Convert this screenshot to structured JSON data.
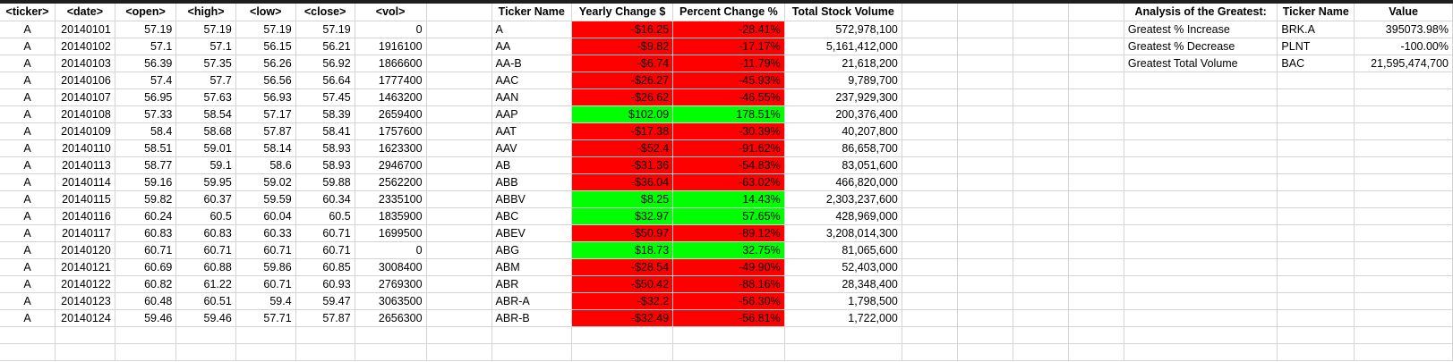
{
  "raw_headers": [
    "<ticker>",
    "<date>",
    "<open>",
    "<high>",
    "<low>",
    "<close>",
    "<vol>"
  ],
  "raw_rows": [
    [
      "A",
      "20140101",
      "57.19",
      "57.19",
      "57.19",
      "57.19",
      "0"
    ],
    [
      "A",
      "20140102",
      "57.1",
      "57.1",
      "56.15",
      "56.21",
      "1916100"
    ],
    [
      "A",
      "20140103",
      "56.39",
      "57.35",
      "56.26",
      "56.92",
      "1866600"
    ],
    [
      "A",
      "20140106",
      "57.4",
      "57.7",
      "56.56",
      "56.64",
      "1777400"
    ],
    [
      "A",
      "20140107",
      "56.95",
      "57.63",
      "56.93",
      "57.45",
      "1463200"
    ],
    [
      "A",
      "20140108",
      "57.33",
      "58.54",
      "57.17",
      "58.39",
      "2659400"
    ],
    [
      "A",
      "20140109",
      "58.4",
      "58.68",
      "57.87",
      "58.41",
      "1757600"
    ],
    [
      "A",
      "20140110",
      "58.51",
      "59.01",
      "58.14",
      "58.93",
      "1623300"
    ],
    [
      "A",
      "20140113",
      "58.77",
      "59.1",
      "58.6",
      "58.93",
      "2946700"
    ],
    [
      "A",
      "20140114",
      "59.16",
      "59.95",
      "59.02",
      "59.88",
      "2562200"
    ],
    [
      "A",
      "20140115",
      "59.82",
      "60.37",
      "59.59",
      "60.34",
      "2335100"
    ],
    [
      "A",
      "20140116",
      "60.24",
      "60.5",
      "60.04",
      "60.5",
      "1835900"
    ],
    [
      "A",
      "20140117",
      "60.83",
      "60.83",
      "60.33",
      "60.71",
      "1699500"
    ],
    [
      "A",
      "20140120",
      "60.71",
      "60.71",
      "60.71",
      "60.71",
      "0"
    ],
    [
      "A",
      "20140121",
      "60.69",
      "60.88",
      "59.86",
      "60.85",
      "3008400"
    ],
    [
      "A",
      "20140122",
      "60.82",
      "61.22",
      "60.71",
      "60.93",
      "2769300"
    ],
    [
      "A",
      "20140123",
      "60.48",
      "60.51",
      "59.4",
      "59.47",
      "3063500"
    ],
    [
      "A",
      "20140124",
      "59.46",
      "59.46",
      "57.71",
      "57.87",
      "2656300"
    ]
  ],
  "summary_headers": [
    "Ticker Name",
    "Yearly Change $",
    "Percent Change %",
    "Total Stock Volume"
  ],
  "summary_rows": [
    {
      "ticker": "A",
      "change": "-$16.25",
      "pct": "-28.41%",
      "volume": "572,978,100",
      "status": "neg"
    },
    {
      "ticker": "AA",
      "change": "-$9.82",
      "pct": "-17.17%",
      "volume": "5,161,412,000",
      "status": "neg"
    },
    {
      "ticker": "AA-B",
      "change": "-$6.74",
      "pct": "-11.79%",
      "volume": "21,618,200",
      "status": "neg"
    },
    {
      "ticker": "AAC",
      "change": "-$26.27",
      "pct": "-45.93%",
      "volume": "9,789,700",
      "status": "neg"
    },
    {
      "ticker": "AAN",
      "change": "-$26.62",
      "pct": "-46.55%",
      "volume": "237,929,300",
      "status": "neg"
    },
    {
      "ticker": "AAP",
      "change": "$102.09",
      "pct": "178.51%",
      "volume": "200,376,400",
      "status": "pos"
    },
    {
      "ticker": "AAT",
      "change": "-$17.38",
      "pct": "-30.39%",
      "volume": "40,207,800",
      "status": "neg"
    },
    {
      "ticker": "AAV",
      "change": "-$52.4",
      "pct": "-91.62%",
      "volume": "86,658,700",
      "status": "neg"
    },
    {
      "ticker": "AB",
      "change": "-$31.36",
      "pct": "-54.83%",
      "volume": "83,051,600",
      "status": "neg"
    },
    {
      "ticker": "ABB",
      "change": "-$36.04",
      "pct": "-63.02%",
      "volume": "466,820,000",
      "status": "neg"
    },
    {
      "ticker": "ABBV",
      "change": "$8.25",
      "pct": "14.43%",
      "volume": "2,303,237,600",
      "status": "pos"
    },
    {
      "ticker": "ABC",
      "change": "$32.97",
      "pct": "57.65%",
      "volume": "428,969,000",
      "status": "pos"
    },
    {
      "ticker": "ABEV",
      "change": "-$50.97",
      "pct": "-89.12%",
      "volume": "3,208,014,300",
      "status": "neg"
    },
    {
      "ticker": "ABG",
      "change": "$18.73",
      "pct": "32.75%",
      "volume": "81,065,600",
      "status": "pos"
    },
    {
      "ticker": "ABM",
      "change": "-$28.54",
      "pct": "-49.90%",
      "volume": "52,403,000",
      "status": "neg"
    },
    {
      "ticker": "ABR",
      "change": "-$50.42",
      "pct": "-88.16%",
      "volume": "28,348,400",
      "status": "neg"
    },
    {
      "ticker": "ABR-A",
      "change": "-$32.2",
      "pct": "-56.30%",
      "volume": "1,798,500",
      "status": "neg"
    },
    {
      "ticker": "ABR-B",
      "change": "-$32.49",
      "pct": "-56.81%",
      "volume": "1,722,000",
      "status": "neg"
    }
  ],
  "analysis_headers": [
    "Analysis of the Greatest:",
    "Ticker Name",
    "Value"
  ],
  "analysis_rows": [
    {
      "label": "Greatest % Increase",
      "ticker": "BRK.A",
      "value": "395073.98%"
    },
    {
      "label": "Greatest % Decrease",
      "ticker": "PLNT",
      "value": "-100.00%"
    },
    {
      "label": "Greatest Total Volume",
      "ticker": "BAC",
      "value": "21,595,474,700"
    }
  ],
  "colors": {
    "negative": "#ff0000",
    "positive": "#00ff00",
    "gridline": "#d4d4d4"
  }
}
